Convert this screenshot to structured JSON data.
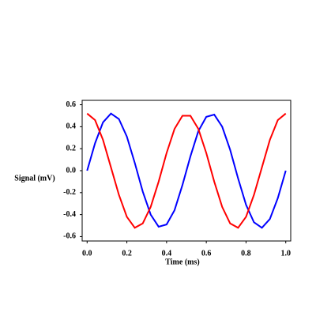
{
  "chart_data": {
    "type": "line",
    "x_label": "Time (ms)",
    "y_label": "Signal (mV)",
    "x": [
      0,
      0.04,
      0.08,
      0.12,
      0.16,
      0.2,
      0.24,
      0.28,
      0.32,
      0.36,
      0.4,
      0.44,
      0.48,
      0.52,
      0.56,
      0.6,
      0.64,
      0.68,
      0.72,
      0.76,
      0.8,
      0.84,
      0.88,
      0.92,
      0.96,
      1.0
    ],
    "series": [
      {
        "color": "#0000ff",
        "values": [
          0,
          0.25,
          0.44,
          0.52,
          0.47,
          0.31,
          0.07,
          -0.19,
          -0.4,
          -0.51,
          -0.49,
          -0.36,
          -0.13,
          0.13,
          0.36,
          0.49,
          0.51,
          0.4,
          0.19,
          -0.07,
          -0.31,
          -0.47,
          -0.52,
          -0.44,
          -0.25,
          0
        ]
      },
      {
        "color": "#ff0000",
        "values": [
          0.52,
          0.46,
          0.28,
          0.03,
          -0.22,
          -0.42,
          -0.52,
          -0.48,
          -0.33,
          -0.1,
          0.16,
          0.38,
          0.5,
          0.5,
          0.38,
          0.16,
          -0.1,
          -0.33,
          -0.48,
          -0.52,
          -0.42,
          -0.22,
          0.03,
          0.28,
          0.46,
          0.52
        ]
      }
    ],
    "xlim": [
      -0.025,
      1.025
    ],
    "ylim": [
      -0.64,
      0.64
    ],
    "xticks": [
      {
        "value": 0,
        "label": "0.0"
      },
      0.2,
      0.4,
      0.6,
      0.8,
      {
        "value": 1,
        "label": "1.0"
      }
    ],
    "yticks": [
      -0.6,
      -0.4,
      -0.2,
      {
        "value": 0,
        "label": "0.0"
      },
      0.2,
      0.4,
      0.6
    ]
  }
}
